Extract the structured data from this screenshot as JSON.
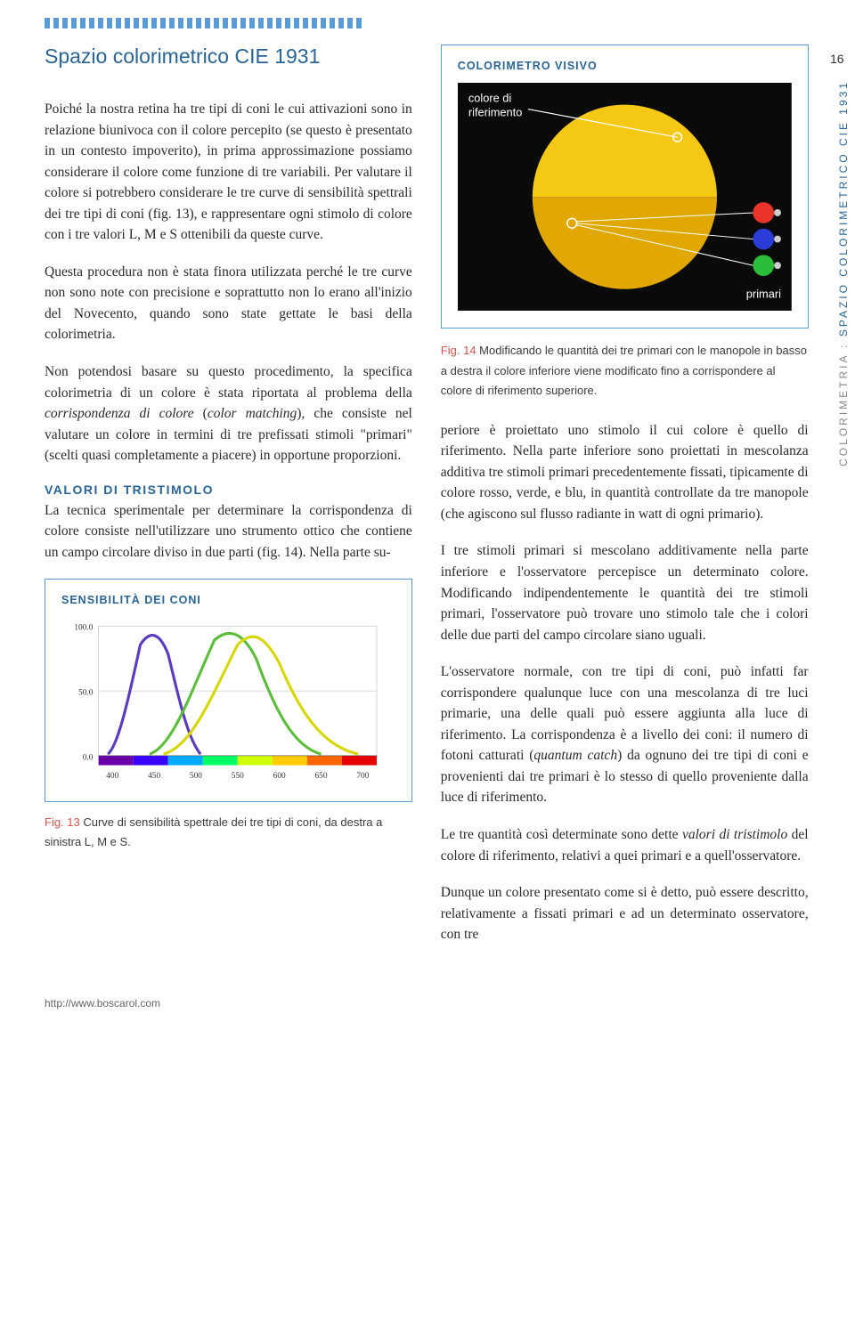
{
  "page_number": "16",
  "side_label_grey": "COLORIMETRIA : ",
  "side_label_blue": "SPAZIO COLORIMETRICO CIE 1931",
  "footer_url": "http://www.boscarol.com",
  "title": "Spazio colorimetrico CIE 1931",
  "para1_a": "Poiché la nostra retina ha tre tipi di coni le cui attivazioni sono in relazione biunivoca con il colore percepito (se questo è presentato in un contesto impoverito), in prima approssimazione possiamo considerare il colore come funzione di tre variabili. Per valutare il colore si potrebbero considerare le tre curve di sensibilità spettrali dei tre tipi di coni (fig. 13), e rappresentare ogni stimolo di colore con i tre valori L, M e S ottenibili da queste curve.",
  "para2": "Questa procedura non è stata finora utilizzata perché le tre curve non sono note con precisione e soprattutto non lo erano all'inizio del Novecento, quando sono state gettate le basi della colorimetria.",
  "para3_a": "Non potendosi basare su questo procedimento, la specifica colorimetria di un colore è stata riportata al problema della ",
  "para3_b": "corrispondenza di colore",
  "para3_c": " (",
  "para3_d": "color matching",
  "para3_e": "), che consiste nel valutare un colore in termini di tre prefissati stimoli \"primari\" (scelti quasi completamente a piacere) in opportune proporzioni.",
  "section_tristimolo": "VALORI DI TRISTIMOLO",
  "para4": "La tecnica sperimentale per determinare la corrispondenza di colore consiste nell'utilizzare uno strumento ottico che contiene un campo circolare diviso in due parti (fig. 14). Nella parte su-",
  "fig13_box_title": "SENSIBILITÀ DEI CONI",
  "fig13_label": "Fig. 13",
  "fig13_caption": " Curve di sensibilità spettrale dei tre tipi di coni, da destra a sinistra L, M e S.",
  "fig14_box_title": "COLORIMETRO VISIVO",
  "fig14_label": "Fig. 14",
  "fig14_caption": " Modificando le quantità dei tre primari con le manopole in basso a destra il colore inferiore viene modificato fino a corrispondere al colore di riferimento superiore.",
  "colorimeter": {
    "ref_label": "colore di\nriferimento",
    "primari_label": "primari",
    "bg": "#0a0a0a",
    "top_yellow": "#f5c816",
    "bottom_yellow": "#e0a800",
    "red": "#e8332a",
    "blue": "#2a3bd6",
    "green": "#2bbd3a",
    "knob": "#cccccc"
  },
  "right_para1": "periore è proiettato uno stimolo il cui colore è quello di riferimento. Nella parte inferiore sono proiettati in mescolanza additiva tre stimoli primari precedentemente fissati, tipicamente di colore rosso, verde, e blu, in quantità controllate da tre manopole (che agiscono sul flusso radiante in watt di ogni primario).",
  "right_para2": "I tre stimoli primari si mescolano additivamente nella parte inferiore e l'osservatore percepisce un determinato colore. Modificando indipendentemente le quantità dei tre stimoli primari, l'osservatore può trovare uno stimolo tale che i colori delle due parti del campo circolare siano uguali.",
  "right_para3_a": "L'osservatore normale, con tre tipi di coni, può infatti far corrispondere qualunque luce con una mescolanza di tre luci primarie, una delle quali può essere aggiunta alla luce di riferimento. La corrispondenza è a livello dei coni: il numero di fotoni catturati (",
  "right_para3_b": "quantum catch",
  "right_para3_c": ") da ognuno dei tre tipi di coni e provenienti dai tre primari è lo stesso di quello proveniente dalla luce di riferimento.",
  "right_para4_a": "Le tre quantità così determinate sono dette ",
  "right_para4_b": "valori di tristimolo",
  "right_para4_c": " del colore di riferimento, relativi a quei primari e a quell'osservatore.",
  "right_para5": "Dunque un colore presentato come si è detto, può essere descritto, relativamente a fissati primari e ad un determinato osservatore, con tre",
  "cone_chart": {
    "bg": "#fff",
    "grid_color": "#ddd",
    "y_ticks": [
      "100.0",
      "50.0",
      "0.0"
    ],
    "x_ticks": [
      "400",
      "450",
      "500",
      "550",
      "600",
      "650",
      "700"
    ],
    "s_color": "#5a3bbd",
    "m_color": "#5bbd3a",
    "l_color": "#d6d600",
    "spectrum": [
      "#6a00a8",
      "#3800ff",
      "#00aaff",
      "#00ff66",
      "#d0ff00",
      "#ffcc00",
      "#ff6600",
      "#e60000",
      "#990000"
    ]
  }
}
